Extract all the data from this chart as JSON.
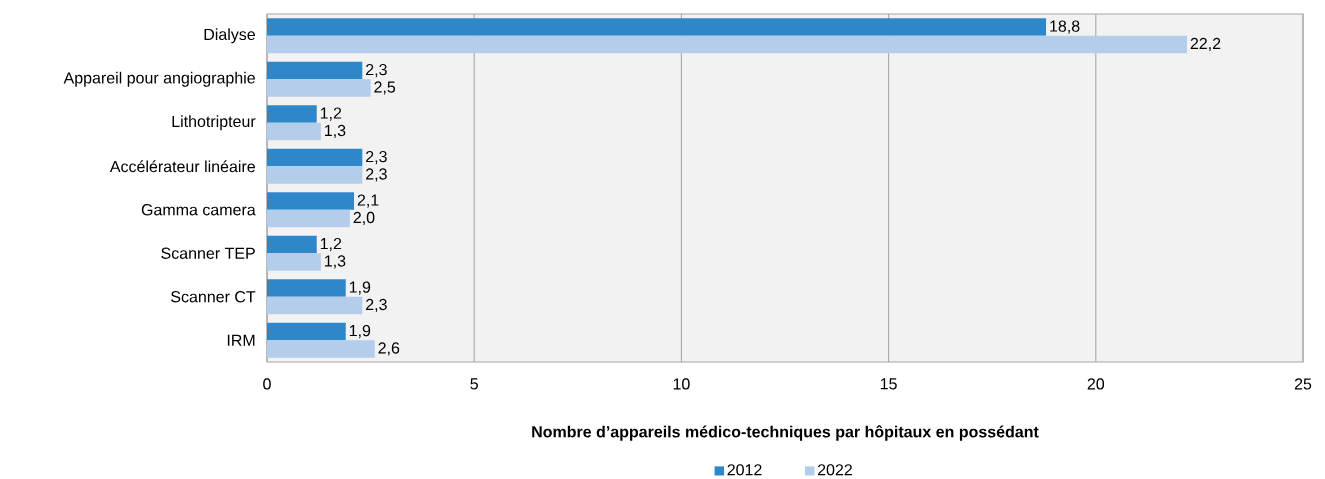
{
  "chart_data": {
    "type": "bar",
    "orientation": "horizontal",
    "categories": [
      "Dialyse",
      "Appareil pour angiographie",
      "Lithotripteur",
      "Accélérateur linéaire",
      "Gamma camera",
      "Scanner TEP",
      "Scanner CT",
      "IRM"
    ],
    "xlabel": "Nombre d’appareils médico-techniques par hôpitaux en possédant",
    "xlim": [
      0,
      25
    ],
    "xticks": [
      0,
      5,
      10,
      15,
      20,
      25
    ],
    "grid": "x",
    "legend": "bottom",
    "series": [
      {
        "name": "2012",
        "color": "#2e87c8",
        "values": [
          18.8,
          2.3,
          1.2,
          2.3,
          2.1,
          1.2,
          1.9,
          1.9
        ],
        "value_labels": [
          "18,8",
          "2,3",
          "1,2",
          "2,3",
          "2,1",
          "1,2",
          "1,9",
          "1,9"
        ]
      },
      {
        "name": "2022",
        "color": "#b3cdeb",
        "values": [
          22.2,
          2.5,
          1.3,
          2.3,
          2.0,
          1.3,
          2.3,
          2.6
        ],
        "value_labels": [
          "22,2",
          "2,5",
          "1,3",
          "2,3",
          "2,0",
          "1,3",
          "2,3",
          "2,6"
        ]
      }
    ]
  }
}
